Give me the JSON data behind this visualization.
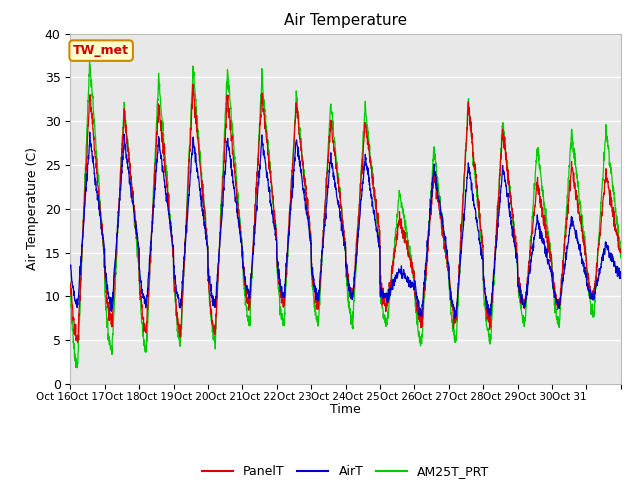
{
  "title": "Air Temperature",
  "ylabel": "Air Temperature (C)",
  "xlabel": "Time",
  "ylim": [
    0,
    40
  ],
  "bg_color": "#e8e8e8",
  "fig_color": "#ffffff",
  "annotation_text": "TW_met",
  "annotation_color": "#cc0000",
  "annotation_bg": "#ffffcc",
  "annotation_border": "#cc8800",
  "series": [
    "PanelT",
    "AirT",
    "AM25T_PRT"
  ],
  "colors": [
    "#dd0000",
    "#0000cc",
    "#00cc00"
  ],
  "n_days": 16,
  "start_day": 16,
  "pts_per_day": 144,
  "panel_max": [
    33,
    31,
    32,
    34,
    33,
    33,
    32,
    30,
    30,
    19,
    24,
    32,
    29,
    23,
    25,
    24
  ],
  "panel_min": [
    5,
    7,
    6,
    6,
    6,
    9,
    9,
    9,
    10,
    9,
    7,
    7,
    7,
    9,
    9,
    10
  ],
  "air_max": [
    28,
    28,
    28,
    28,
    28,
    28,
    28,
    26,
    26,
    13,
    25,
    25,
    25,
    19,
    19,
    16
  ],
  "air_min": [
    9,
    9,
    9,
    9,
    9,
    10,
    10,
    10,
    10,
    10,
    8,
    8,
    8,
    9,
    9,
    10
  ],
  "green_max": [
    37,
    32,
    35,
    36,
    36,
    35,
    33,
    32,
    32,
    22,
    27,
    32,
    30,
    27,
    29,
    29
  ],
  "green_min": [
    2,
    4,
    4,
    5,
    5,
    7,
    7,
    7,
    7,
    7,
    5,
    5,
    5,
    7,
    7,
    8
  ]
}
